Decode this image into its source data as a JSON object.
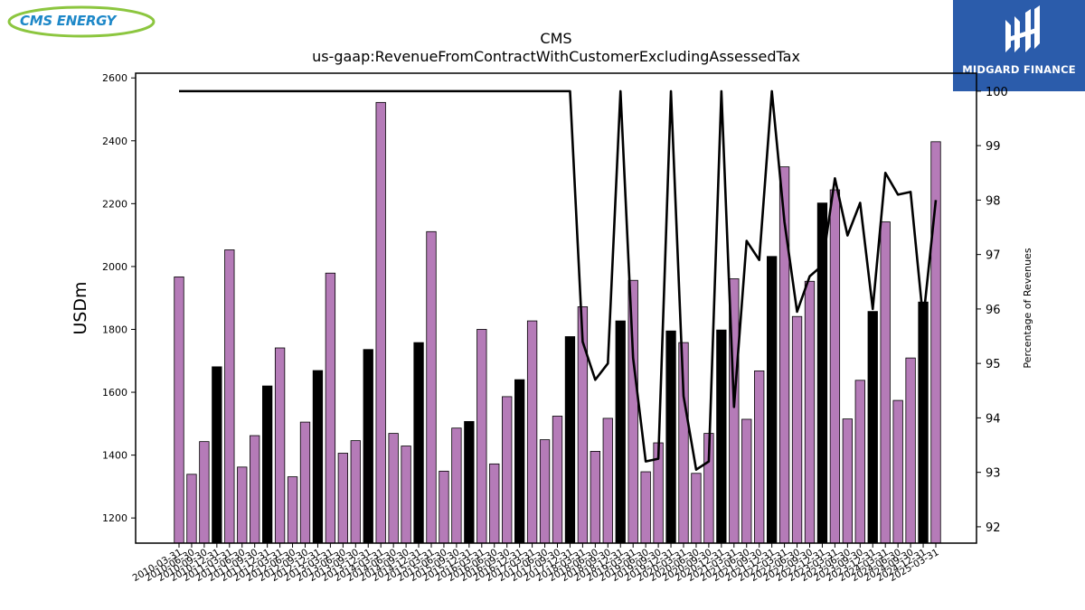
{
  "logos": {
    "left_text": "CMS ENERGY",
    "right_text": "MIDGARD FINANCE"
  },
  "chart_data": {
    "type": "bar",
    "title": "CMS",
    "subtitle": "us-gaap:RevenueFromContractWithCustomerExcludingAssessedTax",
    "ylabel": "USDm",
    "y2label": "Percentage of Revenues",
    "ylim": [
      1120,
      2615
    ],
    "y2lim": [
      91.7,
      100.33
    ],
    "yticks": [
      1200,
      1400,
      1600,
      1800,
      2000,
      2200,
      2400,
      2600
    ],
    "y2ticks": [
      92,
      93,
      94,
      95,
      96,
      97,
      98,
      99,
      100
    ],
    "grid": false,
    "colors": {
      "quarter": "#b57bb8",
      "annual": "#000000",
      "line": "#000000"
    },
    "categories": [
      "2010-03-31",
      "2010-06-30",
      "2010-09-30",
      "2010-12-31",
      "2011-03-31",
      "2011-06-30",
      "2011-09-30",
      "2011-12-31",
      "2012-03-31",
      "2012-06-30",
      "2012-09-30",
      "2012-12-31",
      "2013-03-31",
      "2013-06-30",
      "2013-09-30",
      "2013-12-31",
      "2014-03-31",
      "2014-06-30",
      "2014-09-30",
      "2014-12-31",
      "2015-03-31",
      "2015-06-30",
      "2015-09-30",
      "2015-12-31",
      "2016-03-31",
      "2016-06-30",
      "2016-09-30",
      "2016-12-31",
      "2017-03-31",
      "2017-06-30",
      "2017-09-30",
      "2017-12-31",
      "2018-03-31",
      "2018-06-30",
      "2018-09-30",
      "2018-12-31",
      "2019-03-31",
      "2019-06-30",
      "2019-09-30",
      "2019-12-31",
      "2020-03-31",
      "2020-06-30",
      "2020-09-30",
      "2020-12-31",
      "2021-03-31",
      "2021-06-30",
      "2021-09-30",
      "2021-12-31",
      "2022-03-31",
      "2022-06-30",
      "2022-09-30",
      "2022-12-31",
      "2023-03-31",
      "2023-06-30",
      "2023-09-30",
      "2023-12-31",
      "2024-03-31",
      "2024-06-30",
      "2024-09-30",
      "2024-12-31",
      "2025-03-31"
    ],
    "tick_labels": [
      "2010-03-31",
      "2010-06-30",
      "2010-09-30",
      "2010-12-31",
      "2011-03-31",
      "2011-06-30",
      "2011-09-30",
      "2011-12-31",
      "2012-03-31",
      "2012-06-30",
      "2012-09-30",
      "2012-12-31",
      "2013-03-31",
      "2013-06-30",
      "2013-09-30",
      "2013-12-31",
      "2014-03-31",
      "2014-06-30",
      "2014-09-30",
      "2014-12-31",
      "2015-03-31",
      "2015-06-30",
      "2015-09-30",
      "2015-12-31",
      "2016-03-31",
      "2016-06-30",
      "2016-09-30",
      "2016-12-31",
      "2017-03-31",
      "2017-06-30",
      "2017-09-30",
      "2017-12-31",
      "2018-03-31",
      "2018-06-30",
      "2018-09-30",
      "2018-12-31",
      "2019-03-31",
      "2019-06-30",
      "2019-09-30",
      "2019-12-31",
      "2020-03-31",
      "2020-06-30",
      "2020-09-30",
      "2020-12-31",
      "2021-03-31",
      "2021-06-30",
      "2021-09-30",
      "2021-12-31",
      "2022-03-31",
      "2022-06-30",
      "2022-09-30",
      "2022-12-31",
      "2023-03-31",
      "2023-06-30",
      "2023-09-30",
      "2023-12-31",
      "2024-03-31",
      "2024-06-30",
      "2024-09-30",
      "2024-12-31",
      "2025-03-31"
    ],
    "series": [
      {
        "kind": "bar",
        "values": [
          1967,
          1339,
          1443,
          1681,
          2053,
          1362,
          1462,
          1620,
          1741,
          1331,
          1505,
          1669,
          1979,
          1406,
          1446,
          1736,
          2522,
          1469,
          1429,
          1758,
          2111,
          1349,
          1486,
          1507,
          1800,
          1372,
          1586,
          1640,
          1827,
          1449,
          1524,
          1777,
          1872,
          1412,
          1517,
          1827,
          1956,
          1347,
          1439,
          1795,
          1758,
          1342,
          1469,
          1798,
          1961,
          1514,
          1668,
          2032,
          2317,
          1841,
          1953,
          2202,
          2244,
          1515,
          1638,
          1857,
          2142,
          1574,
          1709,
          1887,
          2397
        ],
        "annual_flags": [
          0,
          0,
          0,
          1,
          0,
          0,
          0,
          1,
          0,
          0,
          0,
          1,
          0,
          0,
          0,
          1,
          0,
          0,
          0,
          1,
          0,
          0,
          0,
          1,
          0,
          0,
          0,
          1,
          0,
          0,
          0,
          1,
          0,
          0,
          0,
          1,
          0,
          0,
          0,
          1,
          0,
          0,
          0,
          1,
          0,
          0,
          0,
          1,
          0,
          0,
          0,
          1,
          0,
          0,
          0,
          1,
          0,
          0,
          0,
          1,
          0
        ]
      },
      {
        "kind": "line",
        "axis": "right",
        "values": [
          100,
          100,
          100,
          100,
          100,
          100,
          100,
          100,
          100,
          100,
          100,
          100,
          100,
          100,
          100,
          100,
          100,
          100,
          100,
          100,
          100,
          100,
          100,
          100,
          100,
          100,
          100,
          100,
          100,
          100,
          100,
          100,
          95.4,
          94.7,
          95.0,
          100,
          95.1,
          93.2,
          93.25,
          100,
          94.4,
          93.05,
          93.2,
          100,
          94.2,
          97.25,
          96.9,
          100,
          97.6,
          95.95,
          96.6,
          96.8,
          98.4,
          97.35,
          97.95,
          96.0,
          98.5,
          98.1,
          98.15,
          95.8,
          98.0
        ]
      }
    ]
  }
}
